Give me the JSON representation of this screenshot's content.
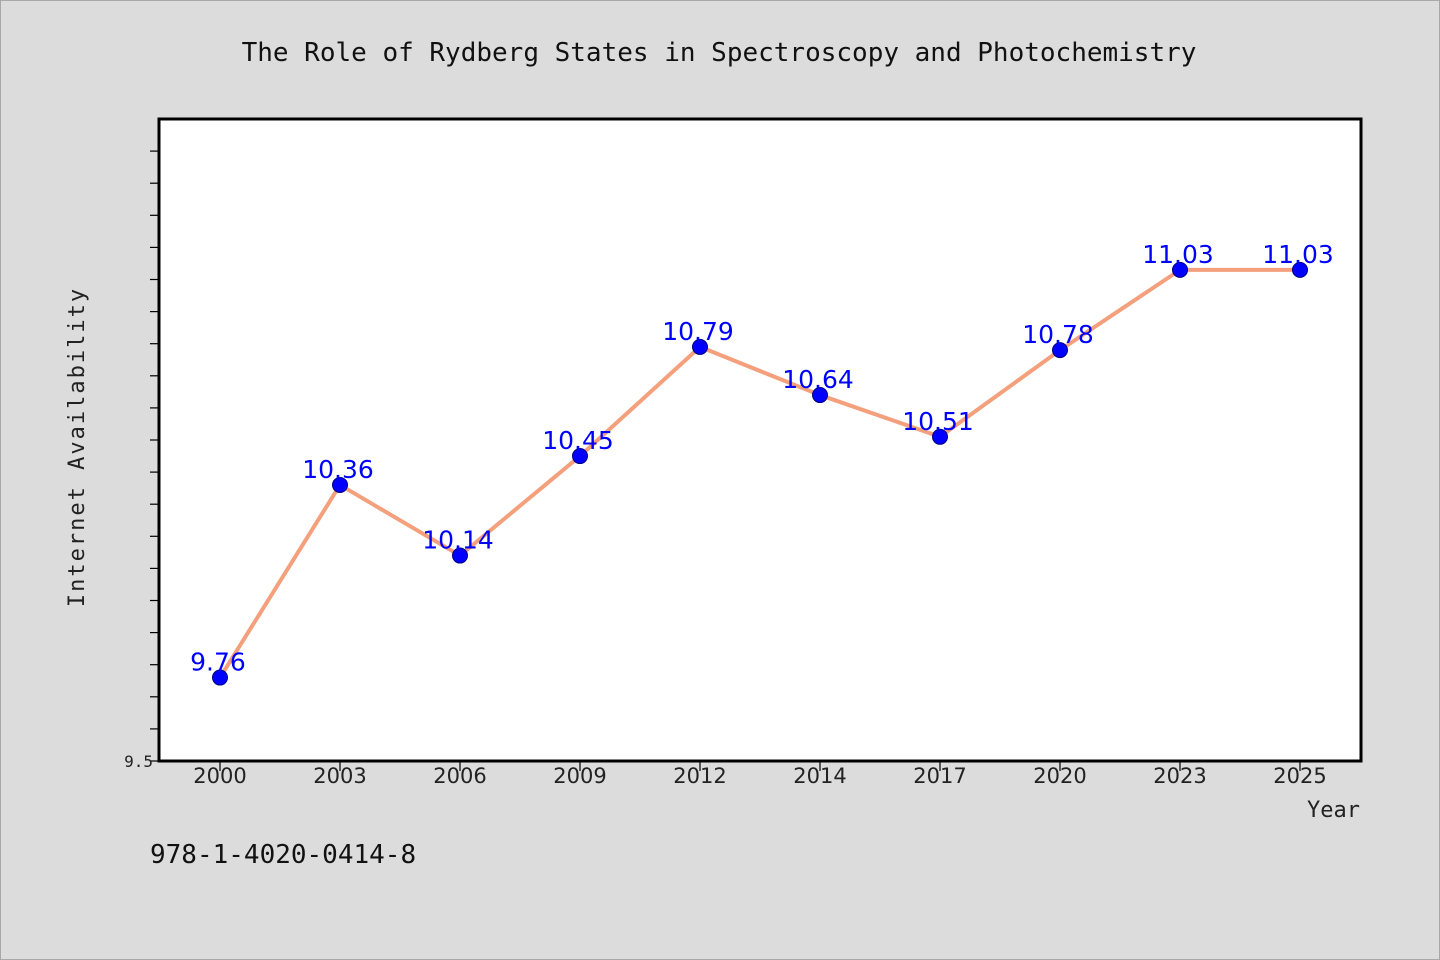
{
  "chart_data": {
    "type": "line",
    "title": "The Role of Rydberg States in Spectroscopy and Photochemistry",
    "xlabel": "Year",
    "ylabel": "Internet Availability",
    "categories": [
      "2000",
      "2003",
      "2006",
      "2009",
      "2012",
      "2014",
      "2017",
      "2020",
      "2023",
      "2025"
    ],
    "series": [
      {
        "values": [
          9.76,
          10.36,
          10.14,
          10.45,
          10.79,
          10.64,
          10.51,
          10.78,
          11.03,
          11.03
        ],
        "data_labels": [
          "9.76",
          "10.36",
          "10.14",
          "10.45",
          "10.79",
          "10.64",
          "10.51",
          "10.78",
          "11.03",
          "11.03"
        ],
        "line_color": "#f4a07c",
        "marker_color": "#0000ff"
      }
    ],
    "y_tick_labels": [
      "9.5"
    ],
    "ylim": [
      9.5,
      11.5
    ],
    "y_minor_tick_step": 0.1,
    "grid": false,
    "legend": "none"
  },
  "footer": {
    "isbn": "978-1-4020-0414-8"
  }
}
